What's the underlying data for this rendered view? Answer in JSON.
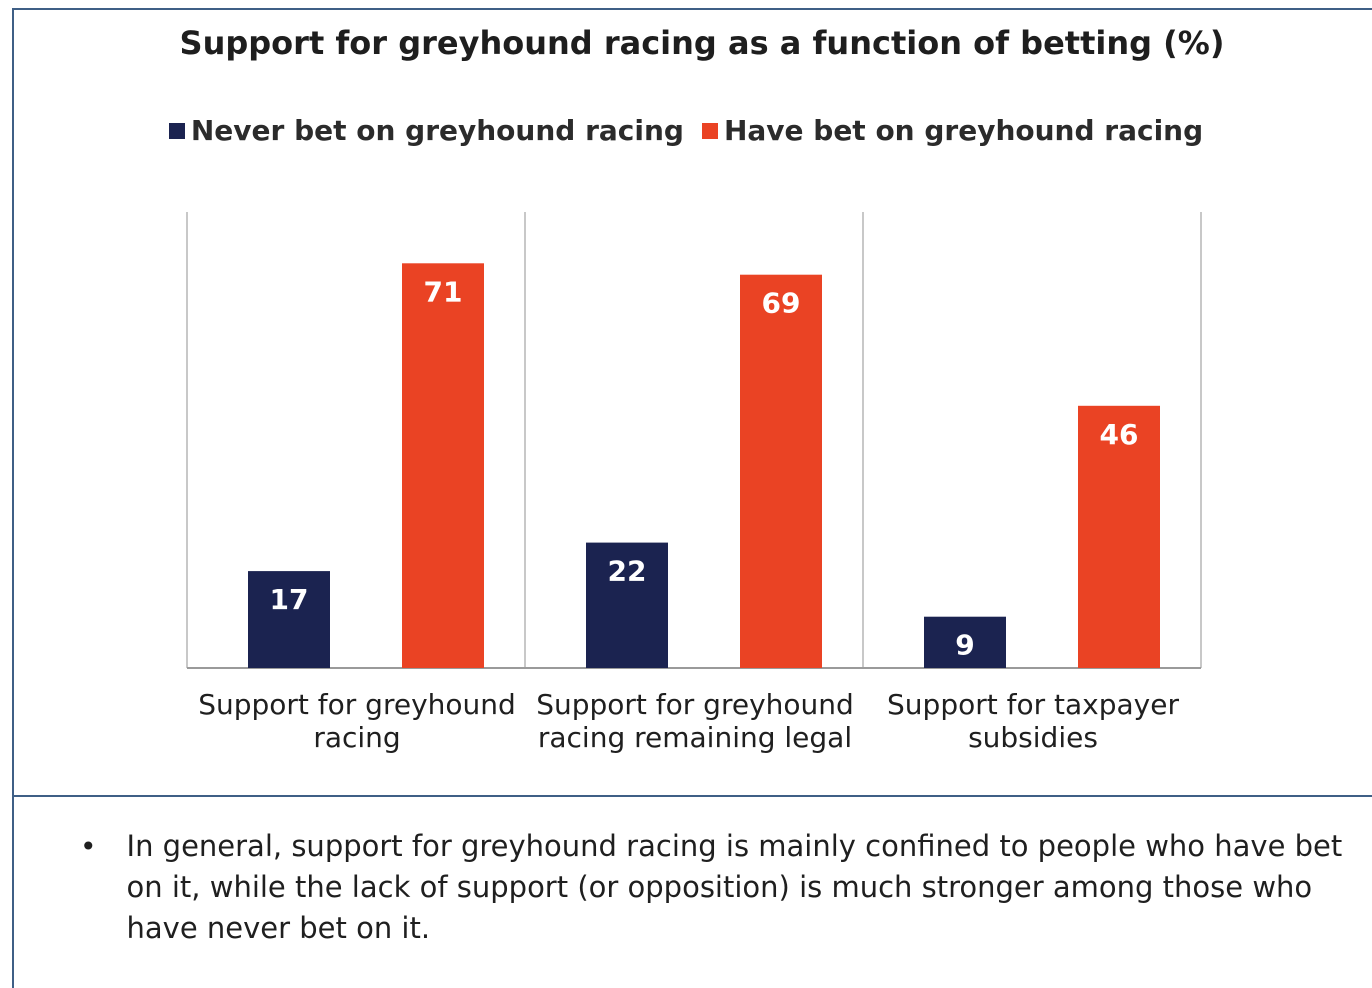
{
  "chart_data": {
    "type": "bar",
    "title": "Support for greyhound racing as a function of betting (%)",
    "categories": [
      "Support for greyhound racing",
      "Support for greyhound racing remaining legal",
      "Support for taxpayer subsidies"
    ],
    "category_lines": [
      [
        "Support for greyhound",
        "racing"
      ],
      [
        "Support for greyhound",
        "racing remaining legal"
      ],
      [
        "Support for taxpayer",
        "subsidies"
      ]
    ],
    "series": [
      {
        "name": "Never bet on greyhound racing",
        "values": [
          17,
          22,
          9
        ],
        "color": "#1b2350"
      },
      {
        "name": "Have bet on greyhound racing",
        "values": [
          71,
          69,
          46
        ],
        "color": "#ea4324"
      }
    ],
    "ylim": [
      0,
      80
    ],
    "grid": false,
    "legend_position": "top"
  },
  "note": {
    "bullet": "•",
    "text": "In general, support for greyhound racing is mainly confined to people who have bet on it, while the lack of support (or opposition) is much stronger among those who have never bet on it."
  }
}
